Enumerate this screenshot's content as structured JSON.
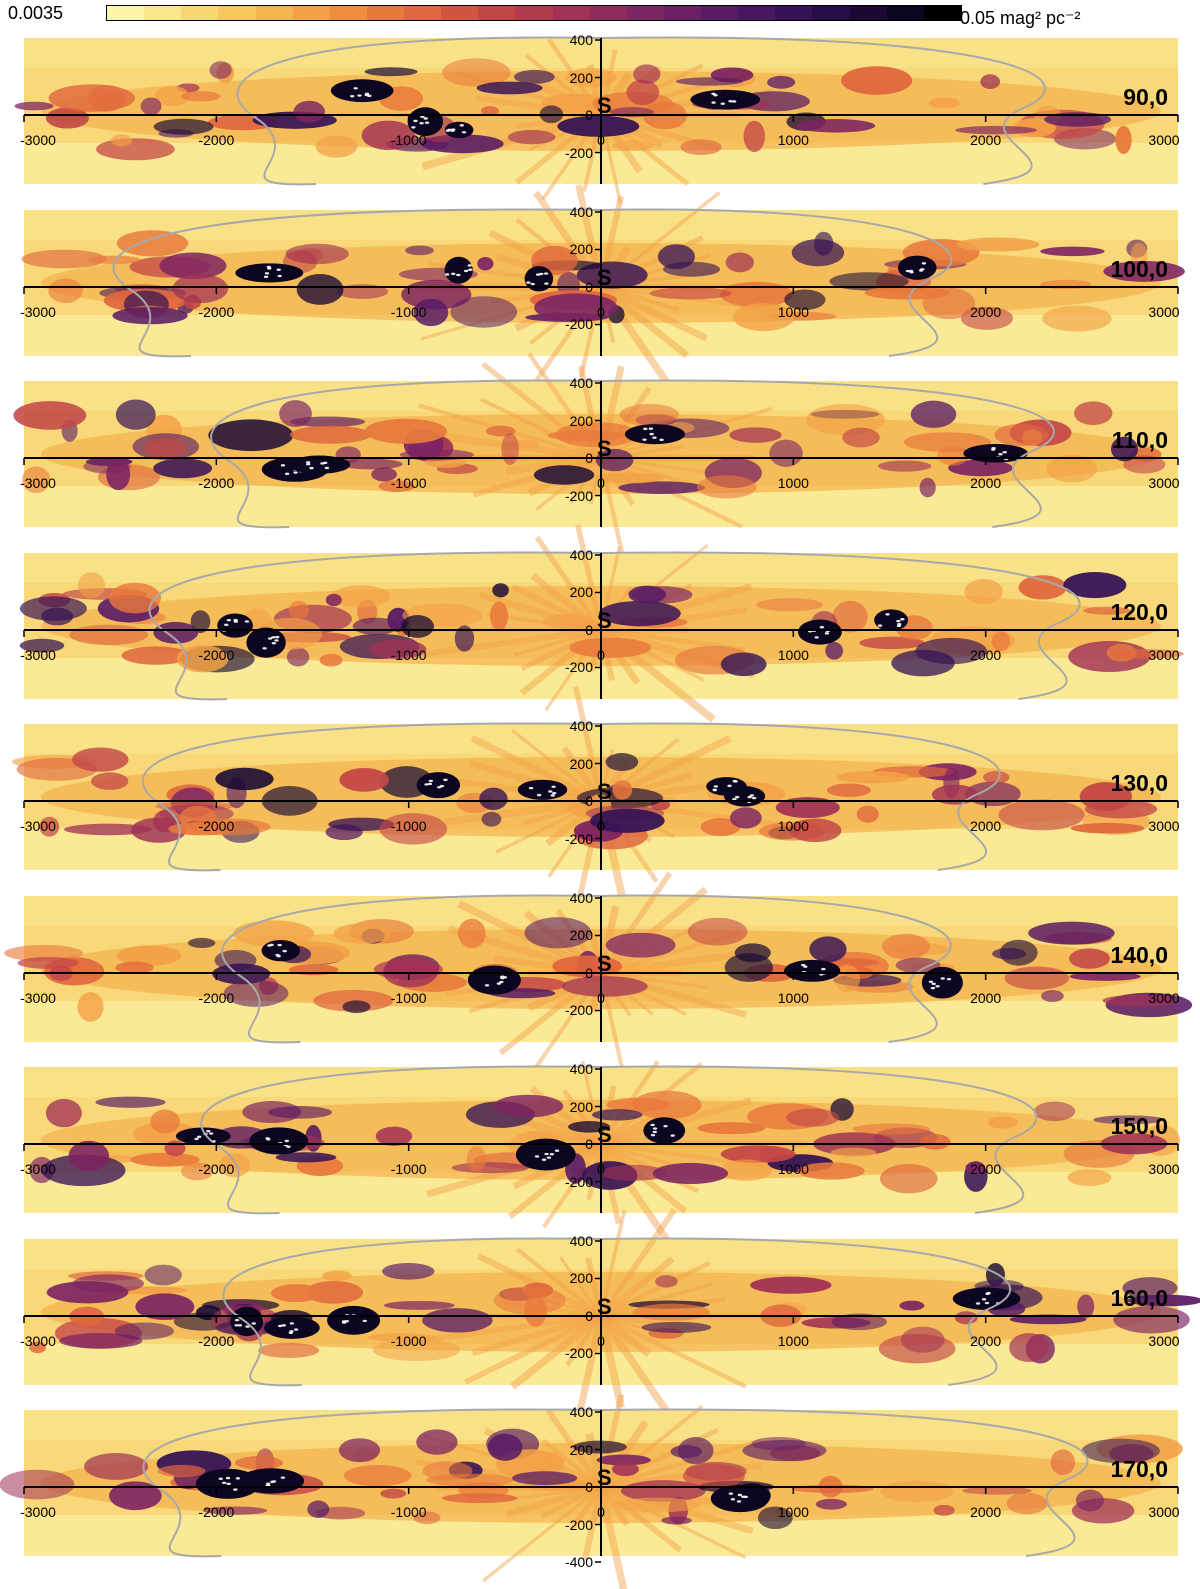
{
  "colorbar": {
    "min_label": "0.0035",
    "max_label": "0.05 mag² pc⁻²",
    "colors": [
      "#fbf6a6",
      "#f8e88a",
      "#f7d870",
      "#f6c75c",
      "#f4b450",
      "#f3a046",
      "#ef8c3e",
      "#e8793c",
      "#df663e",
      "#d25542",
      "#c34647",
      "#b23b4e",
      "#a13255",
      "#8f2a5c",
      "#7d2462",
      "#6b1f65",
      "#591b65",
      "#471760",
      "#361356",
      "#260f48",
      "#180a35",
      "#0d0620",
      "#000000"
    ]
  },
  "chart_data": {
    "type": "heatmap",
    "panel_labels": [
      "90,0",
      "100,0",
      "110,0",
      "120,0",
      "130,0",
      "140,0",
      "150,0",
      "160,0",
      "170,0"
    ],
    "sun_label": "S",
    "x_ticks": [
      "-3000",
      "-2000",
      "-1000",
      "0",
      "1000",
      "2000",
      "3000"
    ],
    "y_ticks": [
      "400",
      "200",
      "0",
      "-200"
    ],
    "y_ticks_last": [
      "400",
      "200",
      "0",
      "-200",
      "-400"
    ],
    "xlim": [
      -3000,
      3000
    ],
    "ylim": [
      -400,
      400
    ],
    "grid": false
  }
}
